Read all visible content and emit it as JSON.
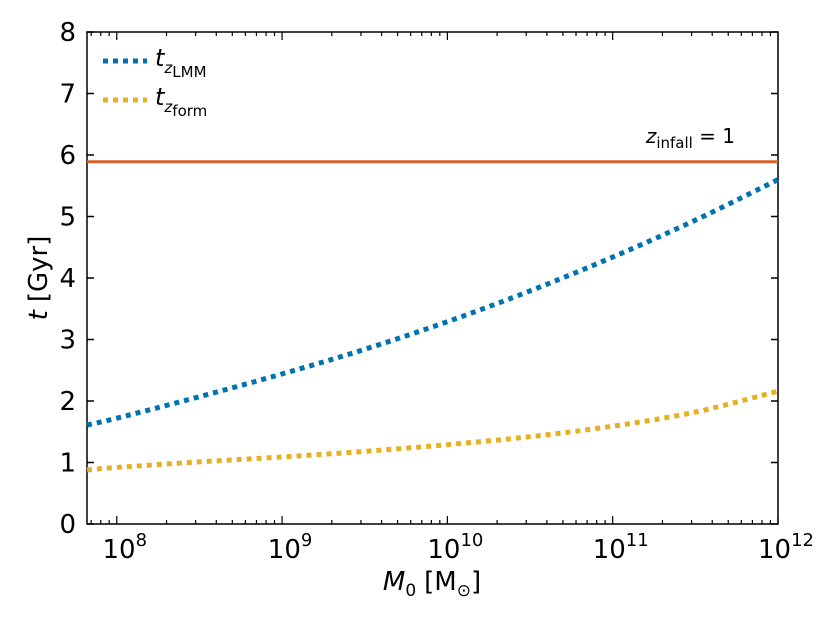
{
  "chart_data": {
    "type": "line",
    "title": "",
    "xlabel": {
      "symbol": "M",
      "subscript": "0",
      "unit_open": "[M",
      "unit_sub": "⊙",
      "unit_close": "]"
    },
    "ylabel": {
      "symbol": "t",
      "unit": "[Gyr]"
    },
    "xscale": "log",
    "xlim_log10": [
      7.82,
      12.0
    ],
    "ylim": [
      0,
      8
    ],
    "x_ticks": [
      {
        "base": "10",
        "exp": "8",
        "log10": 8
      },
      {
        "base": "10",
        "exp": "9",
        "log10": 9
      },
      {
        "base": "10",
        "exp": "10",
        "log10": 10
      },
      {
        "base": "10",
        "exp": "11",
        "log10": 11
      },
      {
        "base": "10",
        "exp": "12",
        "log10": 12
      }
    ],
    "y_ticks": [
      "0",
      "1",
      "2",
      "3",
      "4",
      "5",
      "6",
      "7",
      "8"
    ],
    "legend_position": "top-left",
    "series": [
      {
        "name": "t_z_LMM",
        "label_main": "t",
        "label_sub1": "z",
        "label_sub2": "LMM",
        "color": "#0072b2",
        "style": "dotted",
        "log10_x": [
          7.82,
          8.0,
          8.5,
          9.0,
          9.5,
          10.0,
          10.5,
          11.0,
          11.5,
          12.0
        ],
        "y": [
          1.61,
          1.72,
          2.07,
          2.44,
          2.84,
          3.29,
          3.79,
          4.34,
          4.94,
          5.6
        ]
      },
      {
        "name": "t_z_form",
        "label_main": "t",
        "label_sub1": "z",
        "label_sub2": "form",
        "color": "#e6b025",
        "style": "dotted",
        "log10_x": [
          7.82,
          8.0,
          8.5,
          9.0,
          9.5,
          10.0,
          10.5,
          11.0,
          11.5,
          12.0
        ],
        "y": [
          0.88,
          0.92,
          1.01,
          1.09,
          1.18,
          1.29,
          1.42,
          1.59,
          1.82,
          2.16
        ]
      }
    ],
    "hlines": [
      {
        "name": "z_infall = 1",
        "y": 5.89,
        "color": "#d95f26",
        "style": "solid"
      }
    ],
    "annotations": [
      {
        "label_main": "z",
        "label_sub": "infall",
        "label_rest": " = 1"
      }
    ]
  }
}
